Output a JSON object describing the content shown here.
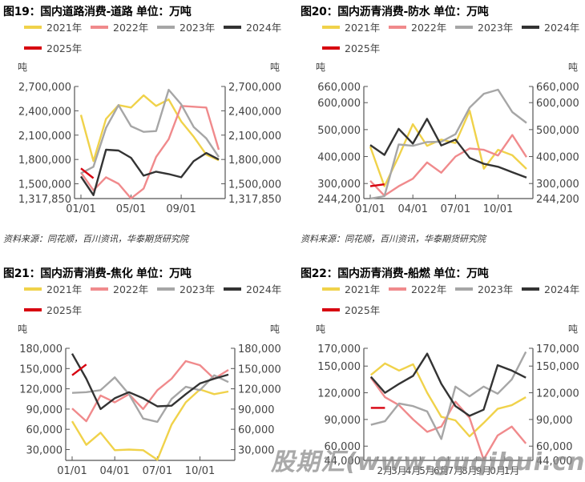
{
  "colors": {
    "2021": "#f0d24a",
    "2022": "#f08a8c",
    "2023": "#a6a6a6",
    "2024": "#333333",
    "2025": "#d7000f"
  },
  "legend": [
    "2021年",
    "2022年",
    "2023年",
    "2024年",
    "2025年"
  ],
  "unit_label": "吨",
  "source": "资料来源：同花顺，百川资讯，华泰期货研究院",
  "watermark": "股期汇(www.guqihui.cn)",
  "chart_data": [
    {
      "type": "line",
      "title": "图19：国内道路消费-道路 单位：万吨",
      "ylabel": "吨",
      "ylim": [
        1317850,
        2700000
      ],
      "yticks": [
        1317850,
        1500000,
        1800000,
        2100000,
        2400000,
        2700000
      ],
      "ytick_labels": [
        "1,317,850",
        "1,500,000",
        "1,800,000",
        "2,100,000",
        "2,400,000",
        "2,700,000"
      ],
      "x_tick_labels": [
        "01/01",
        "05/01",
        "09/01"
      ],
      "x_tick_index": [
        0,
        4,
        8
      ],
      "n_points": 12,
      "series": [
        {
          "name": "2021年",
          "key": "2021",
          "values": [
            2350000,
            1780000,
            2300000,
            2470000,
            2440000,
            2590000,
            2460000,
            2540000,
            2270000,
            2080000,
            1860000,
            1790000
          ]
        },
        {
          "name": "2022年",
          "key": "2022",
          "values": [
            1640000,
            1420000,
            1580000,
            1500000,
            1320000,
            1440000,
            1830000,
            2050000,
            2460000,
            2450000,
            2440000,
            1920000
          ]
        },
        {
          "name": "2023年",
          "key": "2023",
          "values": [
            1630000,
            1710000,
            2190000,
            2470000,
            2210000,
            2140000,
            2150000,
            2660000,
            2480000,
            2200000,
            2060000,
            1830000
          ]
        },
        {
          "name": "2024年",
          "key": "2024",
          "values": [
            1590000,
            1360000,
            1920000,
            1910000,
            1820000,
            1600000,
            1650000,
            1620000,
            1580000,
            1780000,
            1880000,
            1800000
          ]
        },
        {
          "name": "2025年",
          "key": "2025",
          "values": [
            1690000,
            1570000
          ]
        }
      ]
    },
    {
      "type": "line",
      "title": "图20：国内沥青消费-防水 单位：万吨",
      "ylabel": "吨",
      "ylim": [
        244200,
        660000
      ],
      "yticks": [
        244200,
        300000,
        400000,
        500000,
        600000,
        660000
      ],
      "ytick_labels": [
        "244,200",
        "300,000",
        "400,000",
        "500,000",
        "600,000",
        "660,000"
      ],
      "x_tick_labels": [
        "01/01",
        "04/01",
        "07/01",
        "10/01"
      ],
      "x_tick_index": [
        0,
        3,
        6,
        9
      ],
      "n_points": 12,
      "series": [
        {
          "name": "2021年",
          "key": "2021",
          "values": [
            437000,
            290000,
            400000,
            520000,
            440000,
            463000,
            450000,
            570000,
            355000,
            425000,
            405000,
            354000
          ]
        },
        {
          "name": "2022年",
          "key": "2022",
          "values": [
            310000,
            255000,
            290000,
            318000,
            378000,
            340000,
            400000,
            430000,
            425000,
            404000,
            480000,
            398000
          ]
        },
        {
          "name": "2023年",
          "key": "2023",
          "values": [
            244200,
            253000,
            445000,
            440000,
            454000,
            455000,
            483000,
            582000,
            633000,
            648000,
            565000,
            525000
          ]
        },
        {
          "name": "2024年",
          "key": "2024",
          "values": [
            443000,
            406000,
            503000,
            448000,
            540000,
            441000,
            463000,
            395000,
            373000,
            362000,
            342000,
            322000
          ]
        },
        {
          "name": "2025年",
          "key": "2025",
          "values": [
            290000,
            297000
          ]
        }
      ]
    },
    {
      "type": "line",
      "title": "图21：国内沥青消费-焦化 单位：万吨",
      "ylabel": "吨",
      "ylim": [
        14000,
        180000
      ],
      "yticks": [
        30000,
        60000,
        90000,
        120000,
        150000,
        180000
      ],
      "ytick_labels": [
        "30,000",
        "60,000",
        "90,000",
        "120,000",
        "150,000",
        "180,000"
      ],
      "x_tick_labels": [
        "01/01",
        "04/01",
        "07/01",
        "10/01"
      ],
      "x_tick_index": [
        0,
        3,
        6,
        9
      ],
      "n_points": 12,
      "series": [
        {
          "name": "2021年",
          "key": "2021",
          "values": [
            72000,
            37000,
            55000,
            29000,
            30000,
            29000,
            15000,
            67000,
            100000,
            119000,
            112000,
            116000
          ]
        },
        {
          "name": "2022年",
          "key": "2022",
          "values": [
            91000,
            72000,
            110000,
            100000,
            112000,
            90000,
            118000,
            135000,
            161000,
            155000,
            135000,
            148000
          ]
        },
        {
          "name": "2023年",
          "key": "2023",
          "values": [
            114000,
            115000,
            118000,
            137000,
            112000,
            76000,
            71000,
            105000,
            123000,
            118000,
            140000,
            130000
          ]
        },
        {
          "name": "2024年",
          "key": "2024",
          "values": [
            172000,
            135000,
            90000,
            106000,
            115000,
            106000,
            94000,
            95000,
            112000,
            128000,
            135000,
            141000
          ]
        },
        {
          "name": "2025年",
          "key": "2025",
          "values": [
            140000,
            156000
          ]
        }
      ]
    },
    {
      "type": "line",
      "title": "图22：国内沥青消费-船燃 单位：万吨",
      "ylabel": "吨",
      "ylim": [
        44000,
        170000
      ],
      "yticks": [
        44000,
        60000,
        90000,
        120000,
        150000,
        170000
      ],
      "ytick_labels": [
        "44,000",
        "60,000",
        "90,000",
        "120,000",
        "150,000",
        "170,000"
      ],
      "x_tick_labels": [
        "2月",
        "3月",
        "4月",
        "5月",
        "6月",
        "7月",
        "8月",
        "9月",
        "0月",
        "1月"
      ],
      "x_tick_index": [
        1,
        2,
        3,
        4,
        5,
        6,
        7,
        8,
        9,
        10
      ],
      "n_points": 12,
      "series": [
        {
          "name": "2021年",
          "key": "2021",
          "values": [
            140000,
            153000,
            145000,
            152000,
            120000,
            93000,
            89000,
            71000,
            86000,
            102000,
            106000,
            115000
          ]
        },
        {
          "name": "2022年",
          "key": "2022",
          "values": [
            137000,
            115000,
            106000,
            90000,
            76000,
            82000,
            110000,
            92000,
            45000,
            72000,
            82000,
            63000
          ]
        },
        {
          "name": "2023年",
          "key": "2023",
          "values": [
            84000,
            88000,
            108000,
            105000,
            99000,
            68000,
            127000,
            116000,
            127000,
            119000,
            135000,
            166000
          ]
        },
        {
          "name": "2024年",
          "key": "2024",
          "values": [
            138000,
            120000,
            130000,
            139000,
            164000,
            130000,
            105000,
            94000,
            101000,
            151000,
            145000,
            137000
          ]
        },
        {
          "name": "2025年",
          "key": "2025",
          "values": [
            103000,
            103000
          ]
        }
      ]
    }
  ]
}
